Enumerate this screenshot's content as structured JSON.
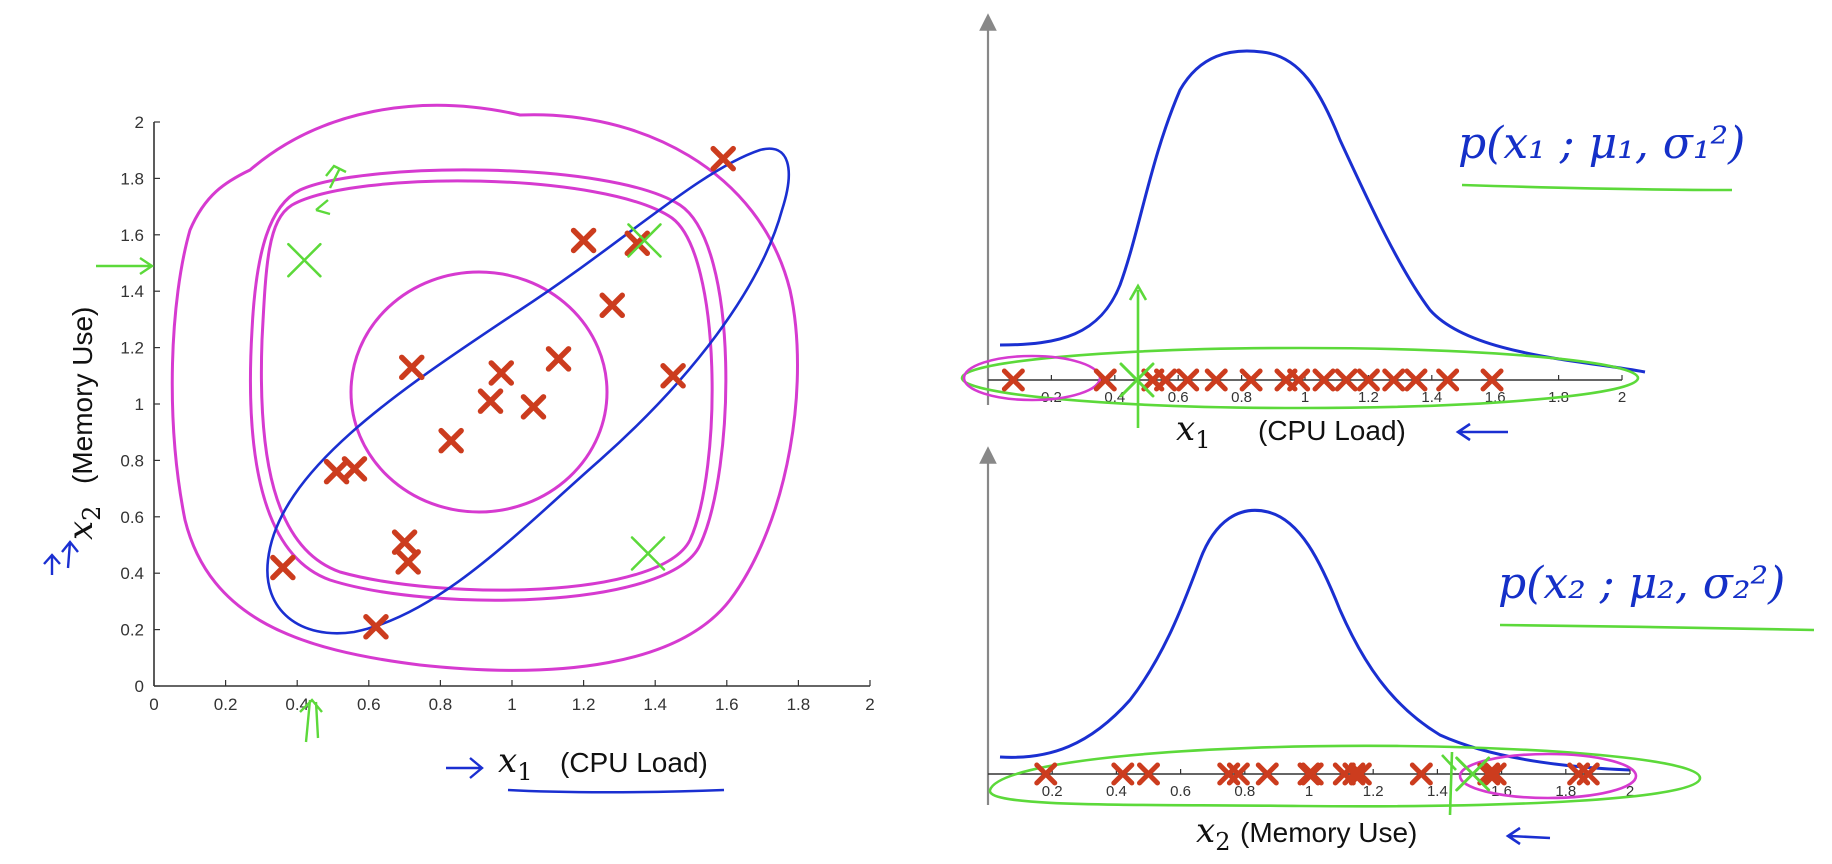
{
  "chart_data": [
    {
      "type": "scatter",
      "title": "",
      "xlabel_var": "x",
      "xlabel_sub": "1",
      "xlabel": "(CPU Load)",
      "ylabel_var": "x",
      "ylabel_sub": "2",
      "ylabel": "(Memory Use)",
      "xlim": [
        0,
        2
      ],
      "ylim": [
        0,
        2
      ],
      "xticks": [
        "0",
        "0.2",
        "0.4",
        "0.6",
        "0.8",
        "1",
        "1.2",
        "1.4",
        "1.6",
        "1.8",
        "2"
      ],
      "yticks": [
        "0",
        "0.2",
        "0.4",
        "0.6",
        "0.8",
        "1",
        "1.2",
        "1.4",
        "1.6",
        "1.8",
        "2"
      ],
      "grid": false,
      "points": [
        {
          "x": 0.36,
          "y": 0.42
        },
        {
          "x": 0.51,
          "y": 0.76
        },
        {
          "x": 0.56,
          "y": 0.77
        },
        {
          "x": 0.62,
          "y": 0.21
        },
        {
          "x": 0.7,
          "y": 0.51
        },
        {
          "x": 0.71,
          "y": 0.44
        },
        {
          "x": 0.72,
          "y": 1.13
        },
        {
          "x": 0.83,
          "y": 0.87
        },
        {
          "x": 0.94,
          "y": 1.01
        },
        {
          "x": 0.97,
          "y": 1.11
        },
        {
          "x": 1.06,
          "y": 0.99
        },
        {
          "x": 1.13,
          "y": 1.16
        },
        {
          "x": 1.2,
          "y": 1.58
        },
        {
          "x": 1.28,
          "y": 1.35
        },
        {
          "x": 1.35,
          "y": 1.57
        },
        {
          "x": 1.45,
          "y": 1.1
        },
        {
          "x": 1.59,
          "y": 1.87
        }
      ],
      "anomalies": [
        {
          "x": 0.42,
          "y": 1.51
        },
        {
          "x": 1.38,
          "y": 0.47
        },
        {
          "x": 1.37,
          "y": 1.58
        }
      ],
      "colors": {
        "points": "#cc3c1e",
        "annotation_magenta": "#d63ad0",
        "annotation_blue": "#1a2fd1",
        "annotation_green": "#5cd93a"
      }
    },
    {
      "type": "line",
      "formula": "p(x₁ ; μ₁, σ₁²)",
      "xlabel_var": "x",
      "xlabel_sub": "1",
      "xlabel": "(CPU Load)",
      "xticks": [
        "0.2",
        "0.4",
        "0.6",
        "0.8",
        "1",
        "1.2",
        "1.4",
        "1.6",
        "1.8",
        "2"
      ],
      "xlim": [
        0,
        2
      ],
      "data_points_x": [
        0.08,
        0.37,
        0.52,
        0.56,
        0.63,
        0.72,
        0.83,
        0.94,
        0.98,
        1.06,
        1.13,
        1.2,
        1.28,
        1.35,
        1.45,
        1.59
      ],
      "anomaly_x": 0.47
    },
    {
      "type": "line",
      "formula": "p(x₂ ; μ₂, σ₂²)",
      "xlabel_var": "x",
      "xlabel_sub": "2",
      "xlabel": "(Memory Use)",
      "xticks": [
        "0.2",
        "0.4",
        "0.6",
        "0.8",
        "1",
        "1.2",
        "1.4",
        "1.6",
        "1.8",
        "2"
      ],
      "xlim": [
        0,
        2
      ],
      "data_points_x": [
        0.18,
        0.42,
        0.5,
        0.75,
        0.78,
        0.87,
        1.0,
        1.01,
        1.11,
        1.14,
        1.16,
        1.35,
        1.56,
        1.58,
        1.84,
        1.87
      ],
      "anomaly_x": 1.51
    }
  ]
}
